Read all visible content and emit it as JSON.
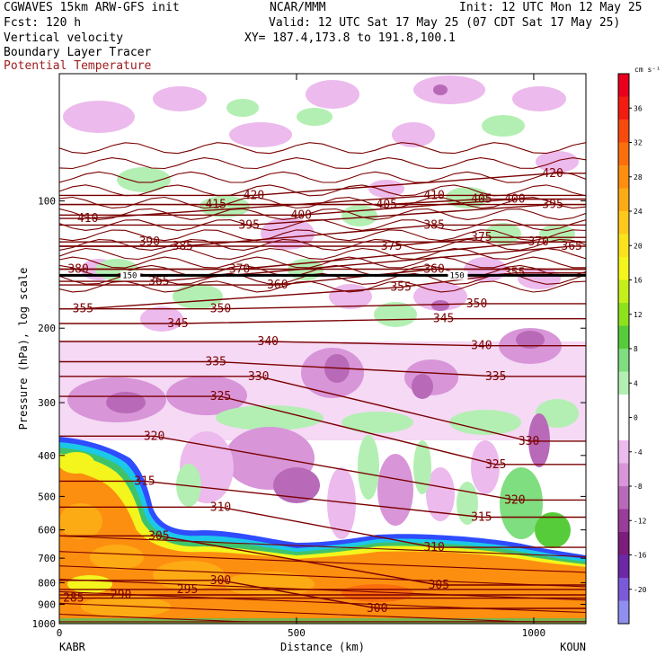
{
  "header": {
    "model": "CGWAVES 15km ARW-GFS init",
    "org": "NCAR/MMM",
    "init": "Init: 12 UTC Mon 12 May 25",
    "fcst": "Fcst: 120 h",
    "valid": "Valid: 12 UTC Sat 17 May 25 (07 CDT Sat 17 May 25)",
    "field1": "Vertical velocity",
    "xy": "XY= 187.4,173.8 to 191.8,100.1",
    "field2": "Boundary Layer Tracer",
    "field3": "Potential Temperature"
  },
  "chart_data": {
    "type": "heatmap",
    "xlabel": "Distance (km)",
    "ylabel": "Pressure (hPa), log scale",
    "x_ticks": [
      0,
      500,
      1000
    ],
    "x_range": [
      0,
      1110
    ],
    "y_ticks": [
      100,
      200,
      300,
      400,
      500,
      600,
      700,
      800,
      900,
      1000
    ],
    "y_range": [
      1000,
      50
    ],
    "y_scale": "log",
    "left_endpoint": "KABR",
    "right_endpoint": "KOUN",
    "colorbar": {
      "unit": "cm s⁻¹",
      "tick_labels": [
        "36",
        "32",
        "28",
        "24",
        "20",
        "16",
        "12",
        "8",
        "4",
        "0",
        "-4",
        "-8",
        "-12",
        "-16",
        "-20"
      ],
      "colors": [
        "#e8001c",
        "#f21c10",
        "#f94a0e",
        "#fb6e0e",
        "#fd8f10",
        "#fdab14",
        "#ffc91c",
        "#fbe31c",
        "#f3f51c",
        "#c5ef1a",
        "#8ee21c",
        "#56cc3a",
        "#7fde7f",
        "#b3efb3",
        "#ffffff",
        "#ffffff",
        "#ecbaec",
        "#d895d8",
        "#b86ab8",
        "#9a3c9a",
        "#7c1c7c",
        "#6d28a8",
        "#7a5ad8",
        "#8f8ff0"
      ]
    },
    "tropopause_label": "150",
    "theta_labels": [
      {
        "x": 30,
        "p": 870,
        "t": "285"
      },
      {
        "x": 130,
        "p": 855,
        "t": "290"
      },
      {
        "x": 270,
        "p": 830,
        "t": "295"
      },
      {
        "x": 340,
        "p": 790,
        "t": "300"
      },
      {
        "x": 670,
        "p": 920,
        "t": "300"
      },
      {
        "x": 800,
        "p": 810,
        "t": "305"
      },
      {
        "x": 210,
        "p": 620,
        "t": "305"
      },
      {
        "x": 340,
        "p": 530,
        "t": "310"
      },
      {
        "x": 790,
        "p": 660,
        "t": "310"
      },
      {
        "x": 890,
        "p": 560,
        "t": "315"
      },
      {
        "x": 180,
        "p": 460,
        "t": "315"
      },
      {
        "x": 960,
        "p": 510,
        "t": "320"
      },
      {
        "x": 200,
        "p": 360,
        "t": "320"
      },
      {
        "x": 990,
        "p": 370,
        "t": "330"
      },
      {
        "x": 920,
        "p": 420,
        "t": "325"
      },
      {
        "x": 340,
        "p": 290,
        "t": "325"
      },
      {
        "x": 420,
        "p": 260,
        "t": "330"
      },
      {
        "x": 920,
        "p": 260,
        "t": "335"
      },
      {
        "x": 330,
        "p": 240,
        "t": "335"
      },
      {
        "x": 890,
        "p": 220,
        "t": "340"
      },
      {
        "x": 440,
        "p": 215,
        "t": "340"
      },
      {
        "x": 810,
        "p": 190,
        "t": "345"
      },
      {
        "x": 250,
        "p": 195,
        "t": "345"
      },
      {
        "x": 880,
        "p": 175,
        "t": "350"
      },
      {
        "x": 340,
        "p": 180,
        "t": "350"
      },
      {
        "x": 50,
        "p": 180,
        "t": "355"
      },
      {
        "x": 720,
        "p": 160,
        "t": "355"
      },
      {
        "x": 960,
        "p": 148,
        "t": "355"
      },
      {
        "x": 460,
        "p": 158,
        "t": "360"
      },
      {
        "x": 790,
        "p": 145,
        "t": "360"
      },
      {
        "x": 210,
        "p": 155,
        "t": "365"
      },
      {
        "x": 1080,
        "p": 128,
        "t": "365"
      },
      {
        "x": 380,
        "p": 145,
        "t": "370"
      },
      {
        "x": 1010,
        "p": 125,
        "t": "370"
      },
      {
        "x": 40,
        "p": 145,
        "t": "380"
      },
      {
        "x": 700,
        "p": 128,
        "t": "375"
      },
      {
        "x": 890,
        "p": 122,
        "t": "375"
      },
      {
        "x": 790,
        "p": 114,
        "t": "385"
      },
      {
        "x": 260,
        "p": 128,
        "t": "385"
      },
      {
        "x": 190,
        "p": 125,
        "t": "390"
      },
      {
        "x": 400,
        "p": 114,
        "t": "395"
      },
      {
        "x": 1040,
        "p": 102,
        "t": "395"
      },
      {
        "x": 510,
        "p": 108,
        "t": "400"
      },
      {
        "x": 960,
        "p": 99,
        "t": "400"
      },
      {
        "x": 690,
        "p": 102,
        "t": "405"
      },
      {
        "x": 890,
        "p": 99,
        "t": "405"
      },
      {
        "x": 60,
        "p": 110,
        "t": "410"
      },
      {
        "x": 790,
        "p": 97,
        "t": "410"
      },
      {
        "x": 330,
        "p": 102,
        "t": "415"
      },
      {
        "x": 410,
        "p": 97,
        "t": "420"
      },
      {
        "x": 1040,
        "p": 86,
        "t": "420"
      }
    ]
  }
}
